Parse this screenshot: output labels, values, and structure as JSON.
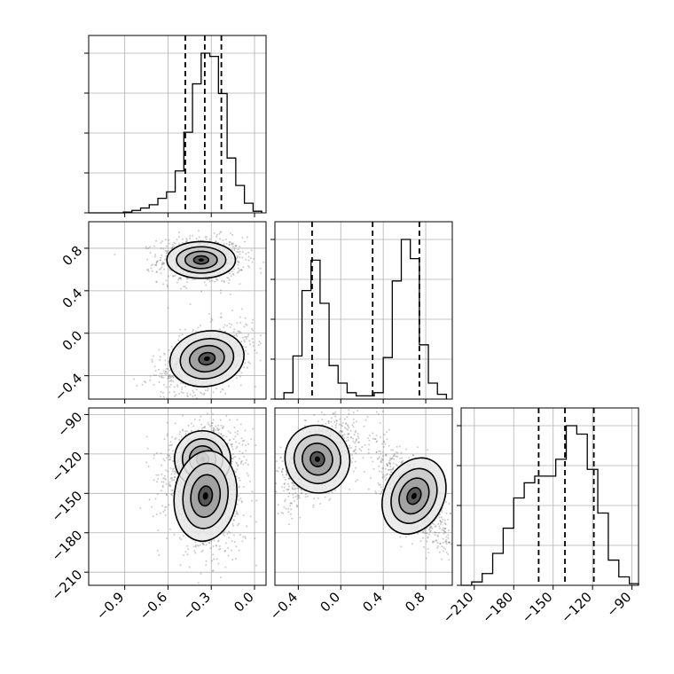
{
  "chart_data": {
    "type": "corner",
    "grid": true,
    "parameters": [
      {
        "ticks": [
          -0.9,
          -0.6,
          -0.3,
          0.0
        ],
        "tick_labels": [
          "−0.9",
          "−0.6",
          "−0.3",
          "0.0"
        ],
        "range": [
          -1.15,
          0.08
        ],
        "quantiles": [
          -0.48,
          -0.345,
          -0.23
        ],
        "histogram": {
          "bin_edges": [
            -1.15,
            -1.09,
            -1.03,
            -0.97,
            -0.91,
            -0.85,
            -0.79,
            -0.73,
            -0.67,
            -0.61,
            -0.55,
            -0.49,
            -0.43,
            -0.37,
            -0.31,
            -0.25,
            -0.19,
            -0.13,
            -0.07,
            -0.01,
            0.05
          ],
          "counts": [
            0.0,
            0.0,
            0.0,
            0.0,
            0.005,
            0.015,
            0.03,
            0.05,
            0.09,
            0.13,
            0.26,
            0.5,
            0.8,
            0.99,
            0.97,
            0.74,
            0.34,
            0.17,
            0.06,
            0.01
          ]
        }
      },
      {
        "ticks": [
          -0.4,
          0.0,
          0.4,
          0.8
        ],
        "tick_labels": [
          "−0.4",
          "0.0",
          "0.4",
          "0.8"
        ],
        "range": [
          -0.62,
          1.05
        ],
        "quantiles": [
          -0.27,
          0.3,
          0.74
        ],
        "histogram": {
          "bin_edges": [
            -0.62,
            -0.535,
            -0.45,
            -0.365,
            -0.28,
            -0.195,
            -0.11,
            -0.025,
            0.06,
            0.145,
            0.23,
            0.315,
            0.4,
            0.485,
            0.57,
            0.655,
            0.74,
            0.825,
            0.91,
            0.995
          ],
          "counts": [
            0.0,
            0.04,
            0.27,
            0.68,
            0.87,
            0.6,
            0.21,
            0.1,
            0.04,
            0.02,
            0.02,
            0.04,
            0.26,
            0.74,
            1.0,
            0.88,
            0.34,
            0.1,
            0.03
          ]
        }
      },
      {
        "ticks": [
          -210,
          -180,
          -150,
          -120,
          -90
        ],
        "tick_labels": [
          "−210",
          "−180",
          "−150",
          "−120",
          "−90"
        ],
        "range": [
          -220,
          -85
        ],
        "quantiles": [
          -161,
          -141,
          -119
        ],
        "histogram": {
          "bin_edges": [
            -220,
            -212,
            -204,
            -196,
            -188,
            -180,
            -172,
            -164,
            -156,
            -148,
            -140,
            -132,
            -124,
            -116,
            -108,
            -100,
            -92,
            -85
          ],
          "counts": [
            0.0,
            0.02,
            0.07,
            0.19,
            0.34,
            0.52,
            0.61,
            0.65,
            0.65,
            0.75,
            0.95,
            0.9,
            0.69,
            0.43,
            0.15,
            0.05,
            0.01
          ]
        }
      }
    ],
    "joint": [
      {
        "x_param": 0,
        "y_param": 1,
        "clusters": [
          {
            "center": [
              -0.37,
              0.69
            ],
            "sigma": [
              0.11,
              0.08
            ],
            "rho": 0.0
          },
          {
            "center": [
              -0.33,
              -0.24
            ],
            "sigma": [
              0.12,
              0.12
            ],
            "rho": 0.45
          }
        ],
        "contour_scales": [
          0.35,
          0.75,
          1.15,
          1.6
        ]
      },
      {
        "x_param": 0,
        "y_param": 2,
        "clusters": [
          {
            "center": [
              -0.36,
              -124
            ],
            "sigma": [
              0.09,
              10
            ],
            "rho": 0.2
          },
          {
            "center": [
              -0.34,
              -152
            ],
            "sigma": [
              0.1,
              16
            ],
            "rho": -0.15
          }
        ],
        "contour_scales": [
          0.35,
          0.75,
          1.15,
          1.6
        ]
      },
      {
        "x_param": 1,
        "y_param": 2,
        "clusters": [
          {
            "center": [
              -0.22,
              -124
            ],
            "sigma": [
              0.14,
              12
            ],
            "rho": 0.6
          },
          {
            "center": [
              0.69,
              -152
            ],
            "sigma": [
              0.13,
              14
            ],
            "rho": -0.7
          }
        ],
        "contour_scales": [
          0.35,
          0.75,
          1.15,
          1.6
        ]
      }
    ]
  }
}
